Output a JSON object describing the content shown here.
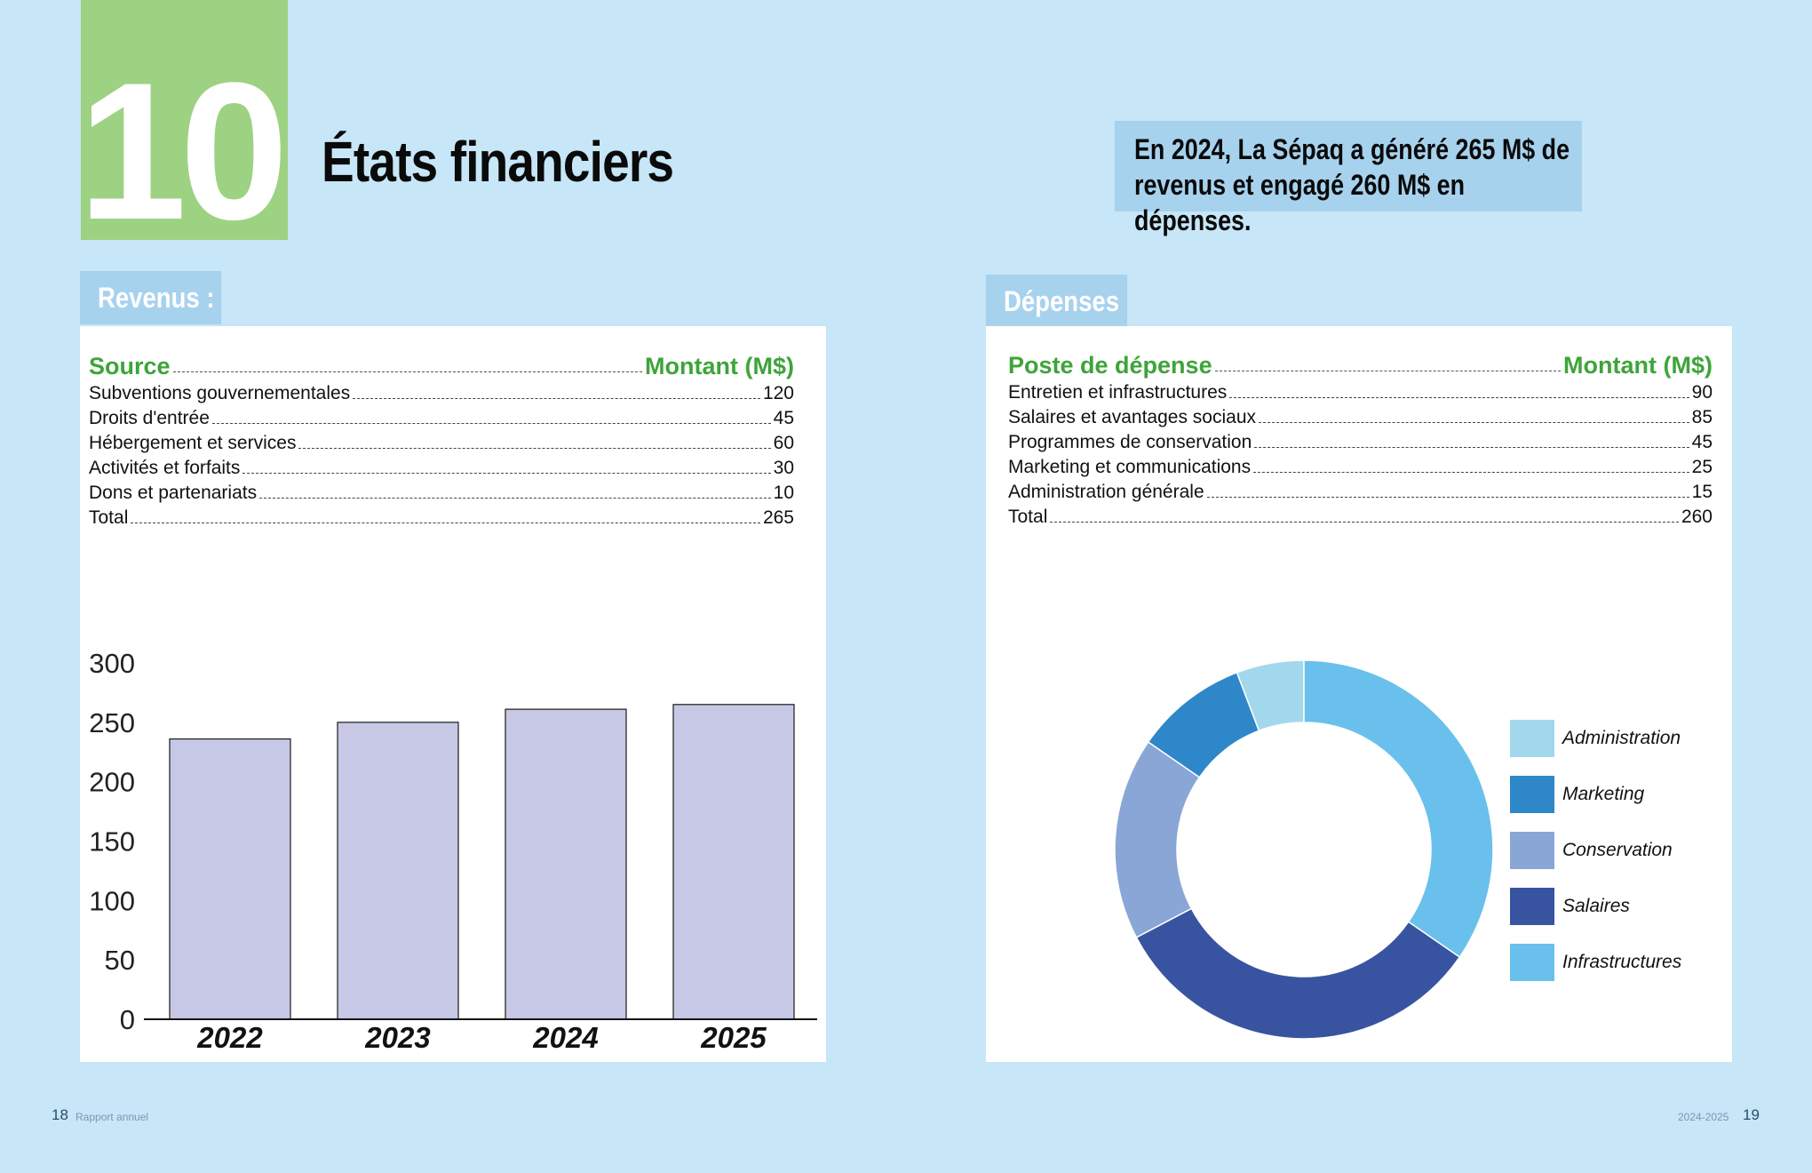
{
  "chapter": {
    "number": "10",
    "title": "États financiers"
  },
  "callout": {
    "text": "En 2024, La Sépaq a généré 265 M$ de revenus et engagé 260 M$ en dépenses."
  },
  "revenus": {
    "heading": "Revenus :",
    "table": {
      "header": {
        "label": "Source",
        "amount": "Montant (M$)"
      },
      "rows": [
        {
          "label": "Subventions gouvernementales",
          "amount": "120"
        },
        {
          "label": "Droits d'entrée",
          "amount": "45"
        },
        {
          "label": "Hébergement et services",
          "amount": "60"
        },
        {
          "label": "Activités et forfaits",
          "amount": "30"
        },
        {
          "label": "Dons et partenariats",
          "amount": "10"
        },
        {
          "label": "Total",
          "amount": "265"
        }
      ]
    }
  },
  "depenses": {
    "heading": "Dépenses",
    "table": {
      "header": {
        "label": "Poste de dépense",
        "amount": "Montant (M$)"
      },
      "rows": [
        {
          "label": "Entretien et infrastructures",
          "amount": "90"
        },
        {
          "label": "Salaires et avantages sociaux",
          "amount": "85"
        },
        {
          "label": "Programmes de conservation",
          "amount": "45"
        },
        {
          "label": "Marketing et communications",
          "amount": "25"
        },
        {
          "label": "Administration générale",
          "amount": "15"
        },
        {
          "label": "Total",
          "amount": "260"
        }
      ]
    }
  },
  "chart_data": [
    {
      "type": "bar",
      "categories": [
        "2022",
        "2023",
        "2024",
        "2025"
      ],
      "values": [
        236,
        250,
        261,
        265
      ],
      "ylim": [
        0,
        300
      ],
      "yticks": [
        0,
        50,
        100,
        150,
        200,
        250,
        300
      ],
      "title": "",
      "xlabel": "",
      "ylabel": "",
      "grid": false,
      "colors": {
        "bar": "#c7c7e6",
        "bar_edge": "#1a1a1a",
        "axis": "#111111"
      }
    },
    {
      "type": "pie",
      "donut": true,
      "labels": [
        "Administration",
        "Marketing",
        "Conservation",
        "Salaires",
        "Infrastructures"
      ],
      "values": [
        15,
        25,
        45,
        85,
        90
      ],
      "colors": [
        "#a2d8ec",
        "#2e87c9",
        "#8aa6d6",
        "#3854a1",
        "#69c0ec"
      ],
      "legend": "right"
    }
  ],
  "footer": {
    "left_page": "18",
    "left_label": "Rapport annuel",
    "right_label": "2024-2025",
    "right_page": "19"
  }
}
